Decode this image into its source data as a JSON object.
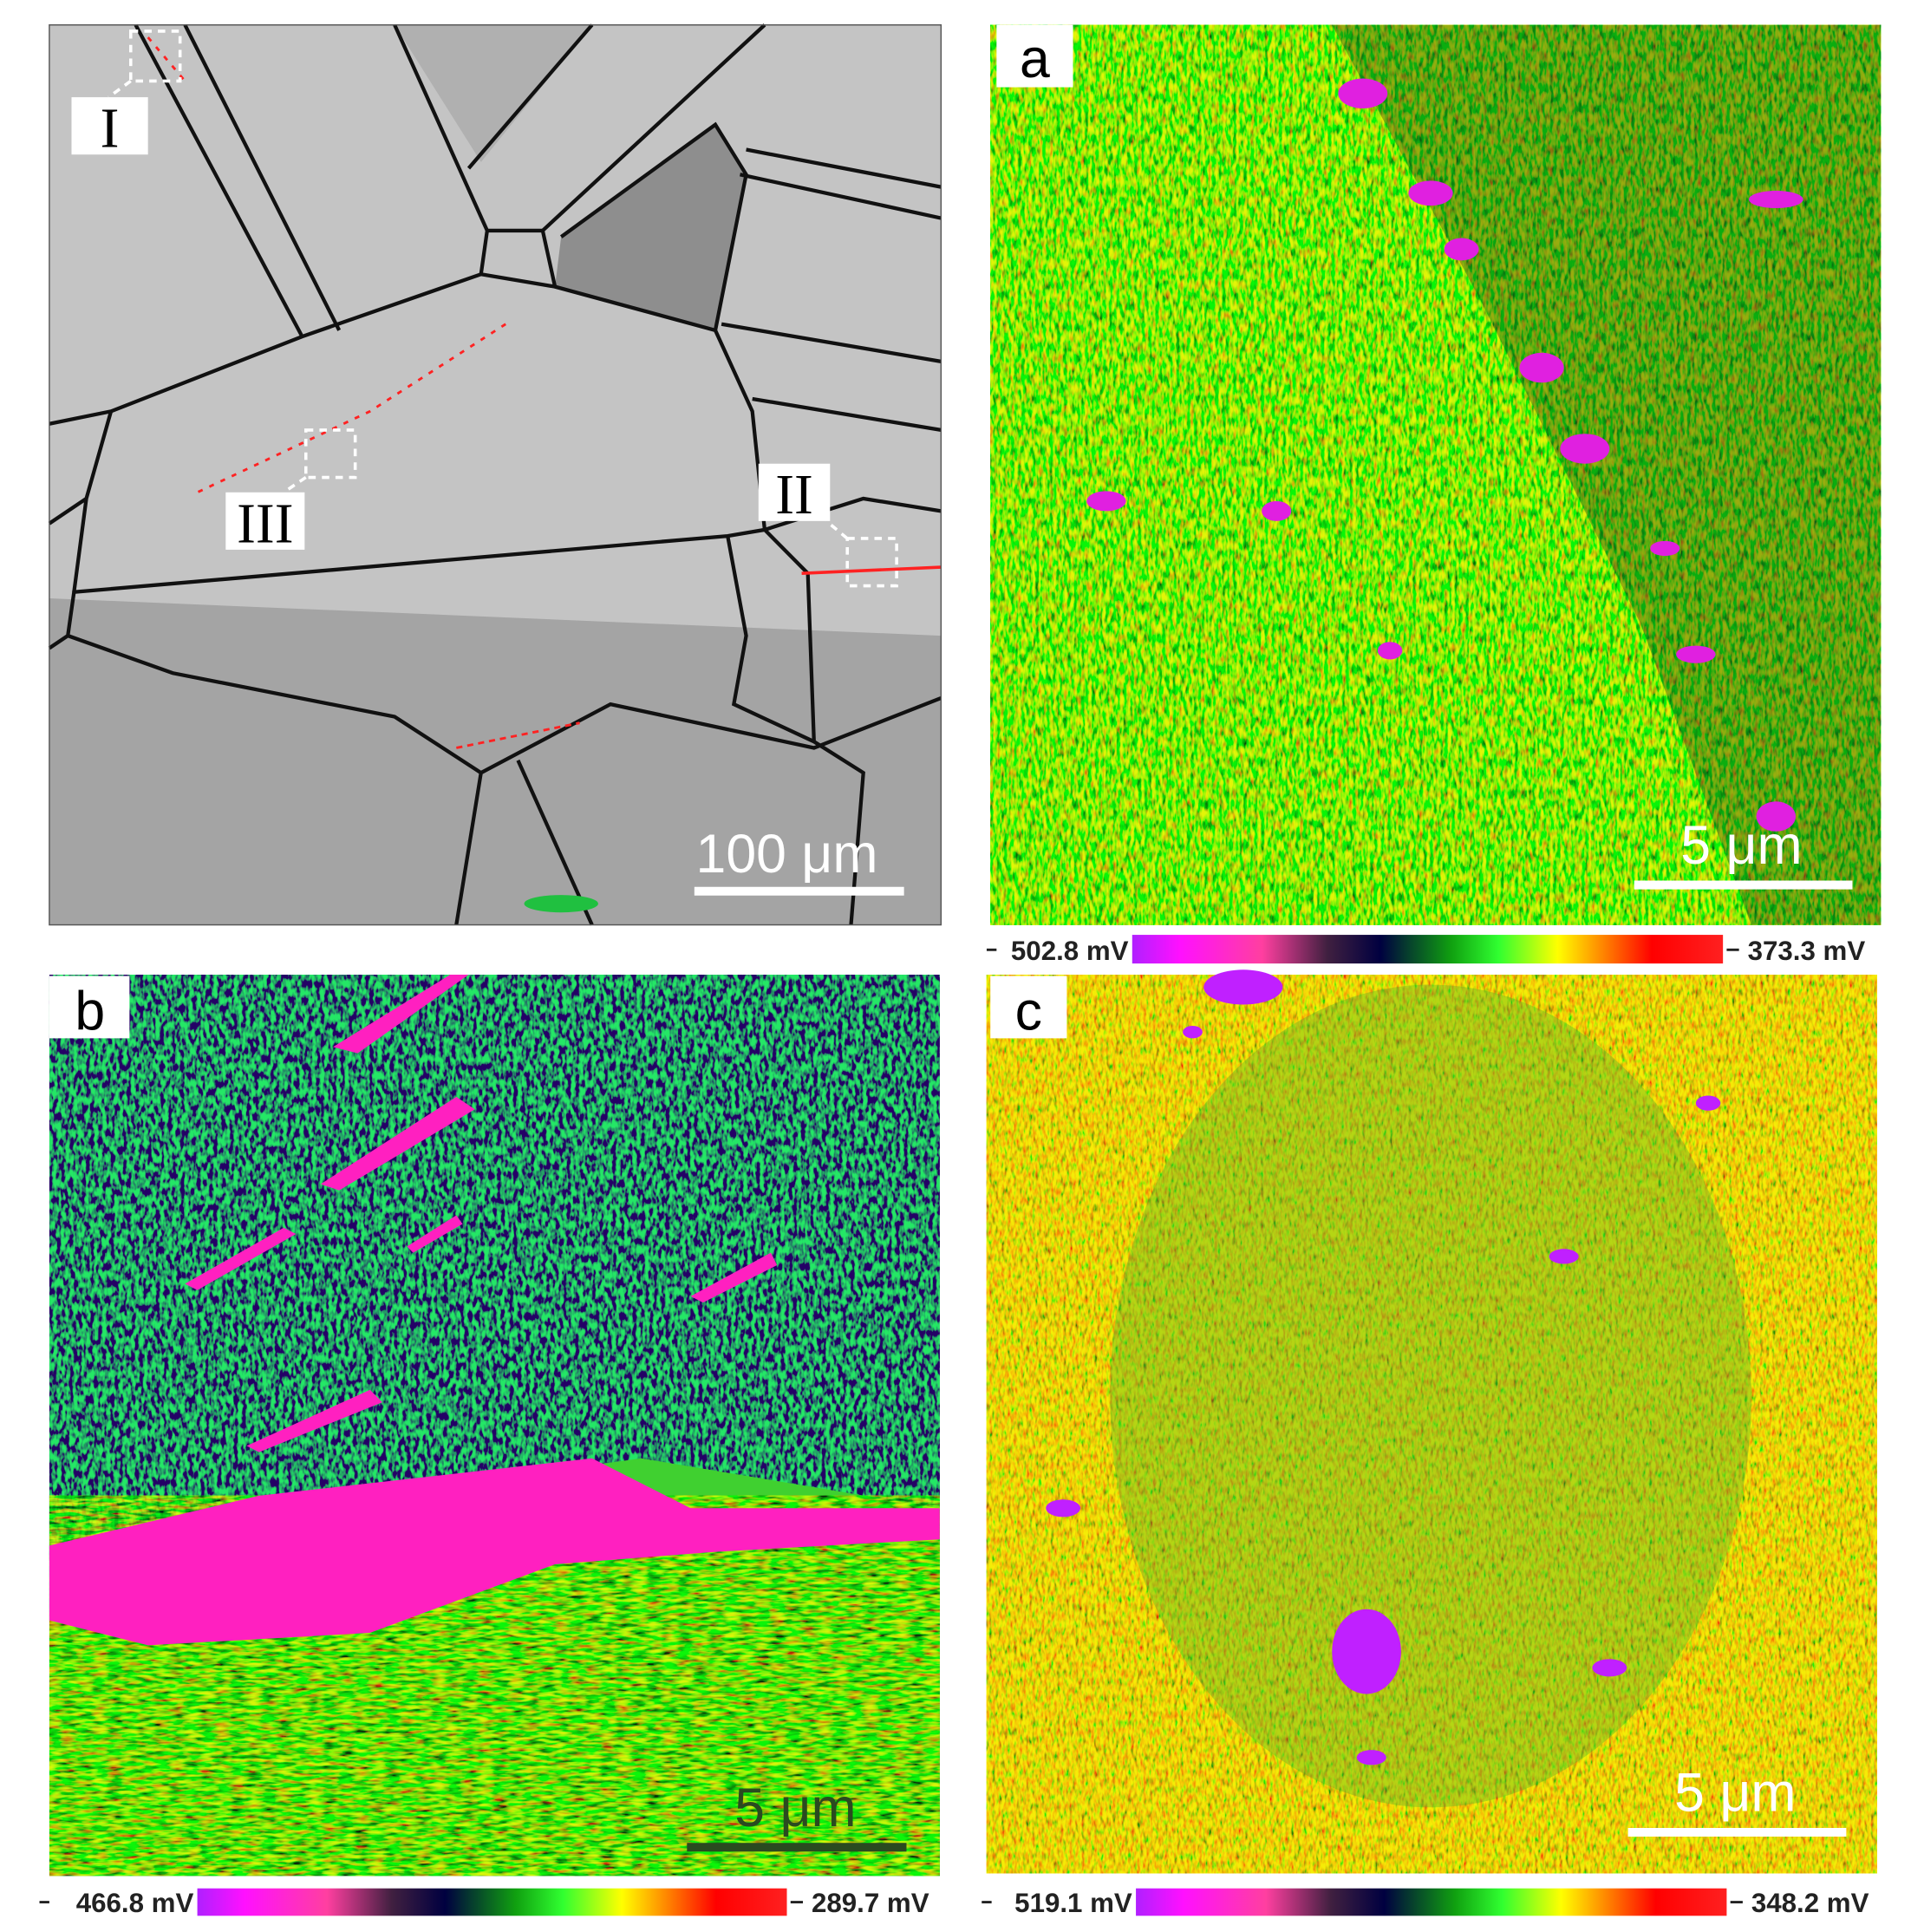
{
  "figure": {
    "ebsd": {
      "region_labels": [
        "I",
        "II",
        "III"
      ],
      "scale_bar": "100 μm"
    },
    "panels": [
      {
        "label": "a",
        "scale_bar": "5 μm",
        "colorbar": {
          "min": "502.8 mV",
          "max": "373.3 mV"
        }
      },
      {
        "label": "b",
        "scale_bar": "5 μm",
        "colorbar": {
          "min": "466.8 mV",
          "max": "289.7 mV"
        }
      },
      {
        "label": "c",
        "scale_bar": "5 μm",
        "colorbar": {
          "min": "519.1 mV",
          "max": "348.2 mV"
        }
      }
    ]
  }
}
